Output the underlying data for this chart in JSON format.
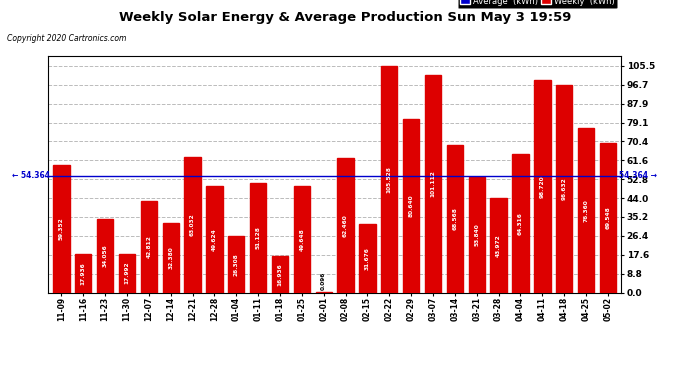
{
  "title": "Weekly Solar Energy & Average Production Sun May 3 19:59",
  "copyright": "Copyright 2020 Cartronics.com",
  "categories": [
    "11-09",
    "11-16",
    "11-23",
    "11-30",
    "12-07",
    "12-14",
    "12-21",
    "12-28",
    "01-04",
    "01-11",
    "01-18",
    "01-25",
    "02-01",
    "02-08",
    "02-15",
    "02-22",
    "02-29",
    "03-07",
    "03-14",
    "03-21",
    "03-28",
    "04-04",
    "04-11",
    "04-18",
    "04-25",
    "05-02"
  ],
  "values": [
    59.352,
    17.936,
    34.056,
    17.992,
    42.812,
    32.38,
    63.032,
    49.624,
    26.308,
    51.128,
    16.936,
    49.648,
    0.096,
    62.46,
    31.676,
    105.528,
    80.64,
    101.112,
    68.568,
    53.84,
    43.972,
    64.316,
    98.72,
    96.632,
    76.36,
    69.548
  ],
  "average": 54.364,
  "bar_color": "#dd0000",
  "average_line_color": "#0000cc",
  "background_color": "#ffffff",
  "plot_background": "#ffffff",
  "grid_color": "#bbbbbb",
  "yticks": [
    0.0,
    8.8,
    17.6,
    26.4,
    35.2,
    44.0,
    52.8,
    61.6,
    70.4,
    79.1,
    87.9,
    96.7,
    105.5
  ],
  "ylim": [
    0,
    110
  ],
  "legend_avg_color": "#0000cc",
  "legend_weekly_color": "#dd0000",
  "legend_avg_label": "Average  (kWh)",
  "legend_weekly_label": "Weekly  (kWh)"
}
